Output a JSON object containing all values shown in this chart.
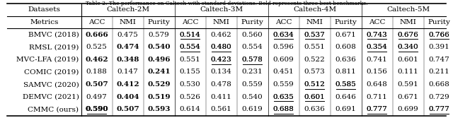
{
  "title": "Table 2: The performance on Caltech with standard deviations. Bold represents three best benchmarks.",
  "col_groups": [
    "Datasets",
    "Caltech-2M",
    "Caltech-3M",
    "Caltech-4M",
    "Caltech-5M"
  ],
  "subheaders": [
    "Metrics",
    "ACC",
    "NMI",
    "Purity",
    "ACC",
    "NMI",
    "Purity",
    "ACC",
    "NMI",
    "Purity",
    "ACC",
    "NMI",
    "Purity"
  ],
  "rows": [
    [
      "BMVC (2018)",
      "0.666",
      "0.475",
      "0.579",
      "0.514",
      "0.462",
      "0.560",
      "0.634",
      "0.537",
      "0.671",
      "0.743",
      "0.676",
      "0.766"
    ],
    [
      "RMSL (2019)",
      "0.525",
      "0.474",
      "0.540",
      "0.554",
      "0.480",
      "0.554",
      "0.596",
      "0.551",
      "0.608",
      "0.354",
      "0.340",
      "0.391"
    ],
    [
      "MVC-LFA (2019)",
      "0.462",
      "0.348",
      "0.496",
      "0.551",
      "0.423",
      "0.578",
      "0.609",
      "0.522",
      "0.636",
      "0.741",
      "0.601",
      "0.747"
    ],
    [
      "COMIC (2019)",
      "0.188",
      "0.147",
      "0.241",
      "0.155",
      "0.134",
      "0.231",
      "0.451",
      "0.573",
      "0.811",
      "0.156",
      "0.111",
      "0.211"
    ],
    [
      "SAMVC (2020)",
      "0.507",
      "0.412",
      "0.529",
      "0.530",
      "0.478",
      "0.559",
      "0.559",
      "0.512",
      "0.585",
      "0.648",
      "0.591",
      "0.668"
    ],
    [
      "DEMVC (2021)",
      "0.497",
      "0.404",
      "0.519",
      "0.526",
      "0.411",
      "0.540",
      "0.635",
      "0.601",
      "0.646",
      "0.711",
      "0.671",
      "0.729"
    ],
    [
      "CMMC (ours)",
      "0.590",
      "0.507",
      "0.593",
      "0.614",
      "0.561",
      "0.619",
      "0.688",
      "0.636",
      "0.691",
      "0.777",
      "0.699",
      "0.777"
    ]
  ],
  "bold_cells": {
    "0": [
      0
    ],
    "1": [
      1,
      2
    ],
    "2": [
      0,
      1,
      2
    ],
    "3": [
      2
    ],
    "4": [
      0,
      1,
      2
    ],
    "5": [
      1,
      2
    ],
    "6": [
      0,
      1,
      2
    ]
  },
  "underline_cells": {
    "0": [
      3,
      6,
      7,
      9,
      10,
      11
    ],
    "1": [
      3,
      4,
      9,
      10
    ],
    "2": [
      4,
      5
    ],
    "3": [],
    "4": [
      7,
      8
    ],
    "5": [
      6,
      7
    ],
    "6": [
      0,
      6,
      9,
      11
    ]
  },
  "background_color": "#ffffff",
  "header_bg": "#f0f0f0",
  "font_size": 7.5,
  "figsize": [
    6.4,
    1.67
  ],
  "dpi": 100
}
